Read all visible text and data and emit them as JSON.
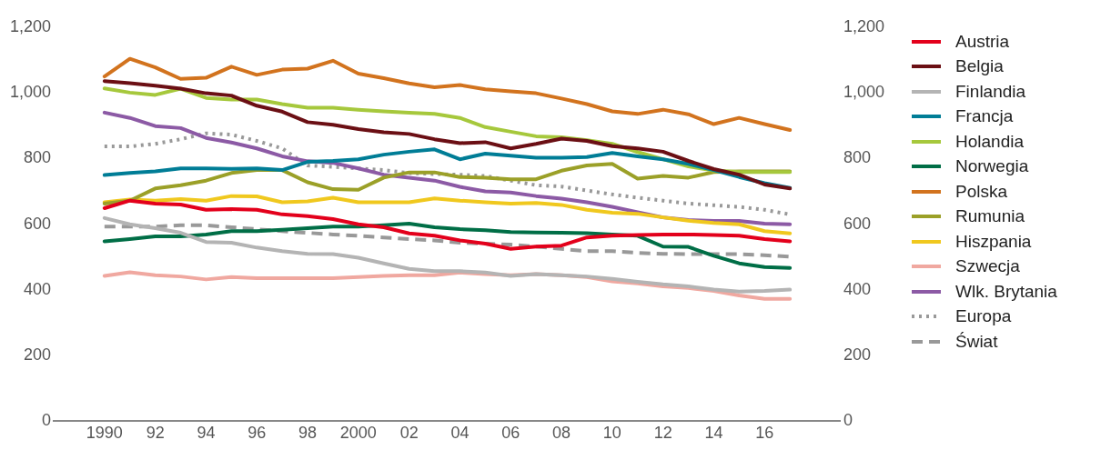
{
  "chart_data": {
    "type": "line",
    "x": [
      1990,
      1991,
      1992,
      1993,
      1994,
      1995,
      1996,
      1997,
      1998,
      1999,
      2000,
      2001,
      2002,
      2003,
      2004,
      2005,
      2006,
      2007,
      2008,
      2009,
      2010,
      2011,
      2012,
      2013,
      2014,
      2015,
      2016,
      2017
    ],
    "series": [
      {
        "name": "Austria",
        "color": "#e3001b",
        "values": [
          649,
          672,
          663,
          660,
          644,
          646,
          644,
          630,
          625,
          616,
          600,
          591,
          572,
          565,
          551,
          541,
          525,
          532,
          535,
          560,
          565,
          567,
          569,
          569,
          567,
          565,
          555,
          548
        ]
      },
      {
        "name": "Belgia",
        "color": "#6b0f14",
        "values": [
          1036,
          1030,
          1022,
          1013,
          999,
          992,
          961,
          943,
          911,
          903,
          890,
          880,
          875,
          859,
          847,
          850,
          831,
          845,
          861,
          854,
          838,
          831,
          821,
          793,
          768,
          751,
          721,
          709
        ]
      },
      {
        "name": "Finlandia",
        "color": "#b4b4b4",
        "values": [
          619,
          600,
          588,
          574,
          546,
          544,
          529,
          518,
          510,
          509,
          498,
          481,
          464,
          457,
          457,
          453,
          443,
          448,
          445,
          441,
          434,
          425,
          417,
          411,
          401,
          395,
          397,
          401
        ]
      },
      {
        "name": "Francja",
        "color": "#007d96",
        "values": [
          750,
          756,
          761,
          770,
          770,
          769,
          770,
          765,
          790,
          793,
          798,
          812,
          821,
          828,
          798,
          815,
          809,
          803,
          803,
          805,
          817,
          807,
          798,
          784,
          765,
          744,
          725,
          711
        ]
      },
      {
        "name": "Holandia",
        "color": "#a6c83c",
        "values": [
          1014,
          1001,
          994,
          1013,
          985,
          980,
          980,
          966,
          955,
          955,
          949,
          944,
          940,
          936,
          924,
          896,
          882,
          868,
          865,
          856,
          845,
          820,
          798,
          776,
          764,
          759,
          759,
          759
        ]
      },
      {
        "name": "Norwegia",
        "color": "#006e46",
        "values": [
          548,
          555,
          563,
          563,
          569,
          579,
          579,
          583,
          588,
          593,
          593,
          597,
          602,
          591,
          585,
          582,
          576,
          575,
          574,
          573,
          569,
          565,
          532,
          531,
          504,
          481,
          470,
          467
        ]
      },
      {
        "name": "Polska",
        "color": "#d2731e",
        "values": [
          1050,
          1104,
          1078,
          1043,
          1046,
          1080,
          1055,
          1071,
          1074,
          1098,
          1059,
          1045,
          1029,
          1017,
          1024,
          1011,
          1005,
          999,
          983,
          966,
          944,
          936,
          949,
          935,
          905,
          924,
          905,
          887
        ]
      },
      {
        "name": "Rumunia",
        "color": "#9ba028",
        "values": [
          663,
          672,
          709,
          719,
          733,
          756,
          765,
          765,
          728,
          707,
          705,
          742,
          758,
          758,
          744,
          742,
          737,
          737,
          763,
          779,
          784,
          739,
          747,
          742,
          759,
          761,
          761,
          761
        ]
      },
      {
        "name": "Hiszpania",
        "color": "#f0c81e",
        "values": [
          667,
          675,
          672,
          677,
          672,
          686,
          685,
          667,
          670,
          681,
          667,
          667,
          667,
          679,
          672,
          667,
          663,
          665,
          659,
          644,
          635,
          632,
          621,
          611,
          604,
          600,
          579,
          572
        ]
      },
      {
        "name": "Szwecja",
        "color": "#f0a8a0",
        "values": [
          443,
          454,
          445,
          441,
          432,
          439,
          436,
          436,
          436,
          436,
          439,
          443,
          445,
          445,
          453,
          448,
          445,
          448,
          445,
          439,
          426,
          420,
          411,
          406,
          397,
          383,
          373,
          373
        ]
      },
      {
        "name": "Wlk. Brytania",
        "color": "#8c5aa5",
        "values": [
          940,
          924,
          899,
          893,
          863,
          849,
          831,
          807,
          792,
          787,
          770,
          751,
          742,
          733,
          714,
          700,
          697,
          686,
          678,
          667,
          653,
          637,
          621,
          613,
          610,
          610,
          602,
          600
        ]
      },
      {
        "name": "Europa",
        "color": "#999999",
        "line_style": "dotted",
        "values": [
          837,
          837,
          845,
          859,
          877,
          873,
          854,
          831,
          779,
          775,
          770,
          765,
          756,
          753,
          751,
          747,
          733,
          719,
          715,
          703,
          691,
          681,
          672,
          663,
          658,
          653,
          644,
          630
        ]
      },
      {
        "name": "Świat",
        "color": "#999999",
        "line_style": "dashed",
        "values": [
          593,
          593,
          593,
          597,
          597,
          591,
          585,
          579,
          574,
          569,
          565,
          560,
          555,
          551,
          544,
          541,
          538,
          532,
          525,
          518,
          518,
          513,
          510,
          509,
          509,
          509,
          506,
          501
        ]
      }
    ],
    "xlim": [
      1988,
      2019
    ],
    "xticks": [
      {
        "value": 1990,
        "label": "1990"
      },
      {
        "value": 1992,
        "label": "92"
      },
      {
        "value": 1994,
        "label": "94"
      },
      {
        "value": 1996,
        "label": "96"
      },
      {
        "value": 1998,
        "label": "98"
      },
      {
        "value": 2000,
        "label": "2000"
      },
      {
        "value": 2002,
        "label": "02"
      },
      {
        "value": 2004,
        "label": "04"
      },
      {
        "value": 2006,
        "label": "06"
      },
      {
        "value": 2008,
        "label": "08"
      },
      {
        "value": 2010,
        "label": "10"
      },
      {
        "value": 2012,
        "label": "12"
      },
      {
        "value": 2014,
        "label": "14"
      },
      {
        "value": 2016,
        "label": "16"
      }
    ],
    "ylim": [
      0,
      1200
    ],
    "yticks": [
      0,
      200,
      400,
      600,
      800,
      {
        "value": 1000,
        "label": "1,000"
      },
      {
        "value": 1200,
        "label": "1,200"
      }
    ],
    "y2lim": [
      0,
      1200
    ],
    "y2ticks": [
      0,
      200,
      400,
      600,
      800,
      {
        "value": 1000,
        "label": "1,000"
      },
      {
        "value": 1200,
        "label": "1,200"
      }
    ],
    "grid": false,
    "legend": "right",
    "marker": "none",
    "line_style": "solid"
  }
}
